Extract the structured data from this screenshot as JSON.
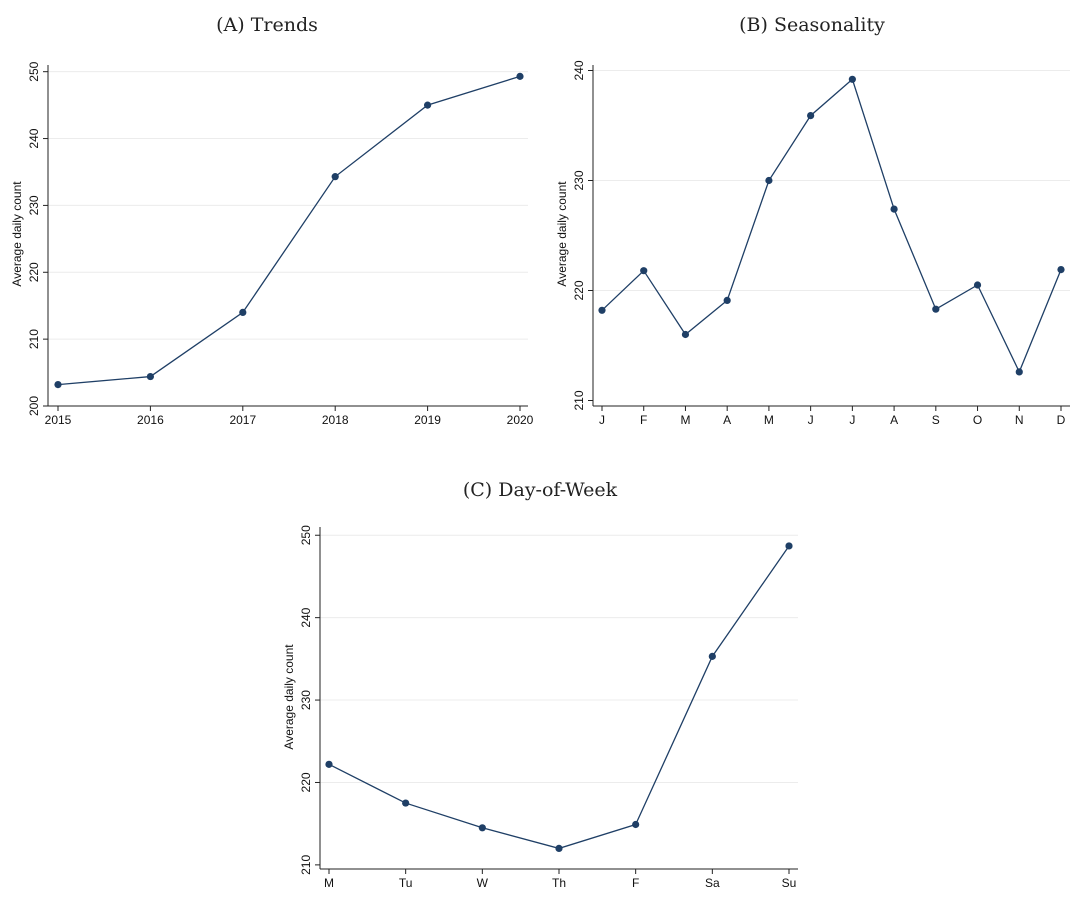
{
  "chart_data": [
    {
      "type": "line",
      "title": "(A) Trends",
      "ylabel": "Average daily count",
      "xlabel": "",
      "categories": [
        "2015",
        "2016",
        "2017",
        "2018",
        "2019",
        "2020"
      ],
      "values": [
        203.2,
        204.4,
        214.0,
        234.3,
        245.0,
        249.3
      ],
      "ylim": [
        200,
        251
      ],
      "yticks": [
        200,
        210,
        220,
        230,
        240,
        250
      ],
      "grid": true,
      "color": "#1f3f66"
    },
    {
      "type": "line",
      "title": "(B) Seasonality",
      "ylabel": "Average daily count",
      "xlabel": "",
      "categories": [
        "J",
        "F",
        "M",
        "A",
        "M",
        "J",
        "J",
        "A",
        "S",
        "O",
        "N",
        "D"
      ],
      "values": [
        218.2,
        221.8,
        216.0,
        219.1,
        230.0,
        235.9,
        239.2,
        227.4,
        218.3,
        220.5,
        212.6,
        221.9
      ],
      "ylim": [
        209.5,
        240.5
      ],
      "yticks": [
        210,
        220,
        230,
        240
      ],
      "grid": true,
      "color": "#1f3f66"
    },
    {
      "type": "line",
      "title": "(C) Day-of-Week",
      "ylabel": "Average daily count",
      "xlabel": "",
      "categories": [
        "M",
        "Tu",
        "W",
        "Th",
        "F",
        "Sa",
        "Su"
      ],
      "values": [
        222.2,
        217.5,
        214.5,
        212.0,
        214.9,
        235.3,
        248.7
      ],
      "ylim": [
        209.5,
        251
      ],
      "yticks": [
        210,
        220,
        230,
        240,
        250
      ],
      "grid": true,
      "color": "#1f3f66"
    }
  ]
}
